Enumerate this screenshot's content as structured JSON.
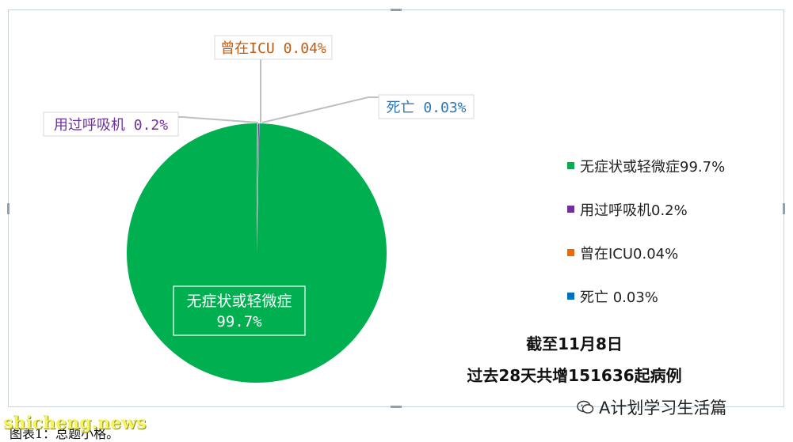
{
  "chart_data": {
    "type": "pie",
    "slices": [
      {
        "label": "无症状或轻微症",
        "value": 99.7,
        "value_label": "99.7%",
        "color": "#00b050"
      },
      {
        "label": "用过呼吸机",
        "value": 0.2,
        "value_label": "0.2%",
        "color": "#7030a0"
      },
      {
        "label": "曾在ICU",
        "value": 0.04,
        "value_label": "0.04%",
        "color": "#e36c09"
      },
      {
        "label": "死亡",
        "value": 0.03,
        "value_label": "0.03%",
        "color": "#0070c0"
      }
    ],
    "data_labels": {
      "main_name": "无症状或轻微症",
      "main_value": "99.7%",
      "ventilator": "用过呼吸机 0.2%",
      "icu": "曾在ICU 0.04%",
      "death": "死亡 0.03%"
    },
    "legend_position": "right"
  },
  "legend": [
    {
      "text": "无症状或轻微症99.7%",
      "color": "#00b050"
    },
    {
      "text": "用过呼吸机0.2%",
      "color": "#7030a0"
    },
    {
      "text": "曾在ICU0.04%",
      "color": "#e36c09"
    },
    {
      "text": "死亡 0.03%",
      "color": "#0070c0"
    }
  ],
  "note": {
    "line1": "截至11月8日",
    "line2": "过去28天共增151636起病例"
  },
  "brand": "A计划学习生活篇",
  "watermark": "shicheng.news",
  "caption": "图表1：总题小格。",
  "icons": {
    "brand_icon": "wechat-icon"
  }
}
